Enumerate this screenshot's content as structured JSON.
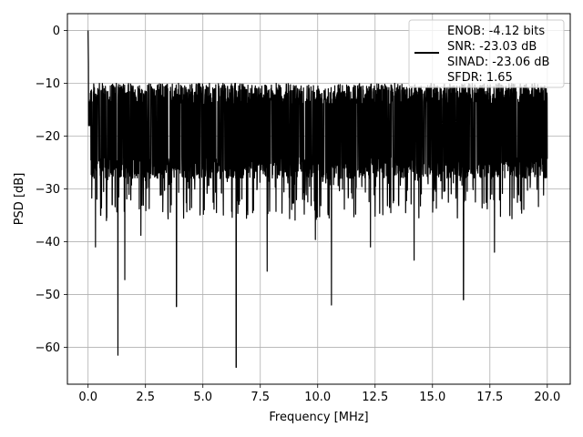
{
  "chart_data": {
    "type": "line",
    "title": "",
    "xlabel": "Frequency [MHz]",
    "ylabel": "PSD [dB]",
    "xlim": [
      -0.9,
      21.0
    ],
    "ylim": [
      -67,
      3.2
    ],
    "xticks": [
      0.0,
      2.5,
      5.0,
      7.5,
      10.0,
      12.5,
      15.0,
      17.5,
      20.0
    ],
    "xtick_labels": [
      "0.0",
      "2.5",
      "5.0",
      "7.5",
      "10.0",
      "12.5",
      "15.0",
      "17.5",
      "20.0"
    ],
    "yticks": [
      0,
      -10,
      -20,
      -30,
      -40,
      -50,
      -60
    ],
    "ytick_labels": [
      "0",
      "−10",
      "−20",
      "−30",
      "−40",
      "−50",
      "−60"
    ],
    "grid": true,
    "legend_position": "top-right",
    "series": [
      {
        "color": "#000000",
        "noise_floor_upper_db": -10,
        "noise_floor_lower_db": -28,
        "dc_peak": [
          0.0,
          0.0
        ],
        "deep_nulls": [
          [
            0.32,
            -41
          ],
          [
            0.55,
            -35
          ],
          [
            0.8,
            -36
          ],
          [
            1.05,
            -33
          ],
          [
            1.3,
            -61.5
          ],
          [
            1.6,
            -47.2
          ],
          [
            2.3,
            -38.8
          ],
          [
            3.85,
            -52.3
          ],
          [
            6.45,
            -63.8
          ],
          [
            7.8,
            -45.6
          ],
          [
            9.9,
            -39.6
          ],
          [
            10.6,
            -52
          ],
          [
            12.3,
            -41
          ],
          [
            14.2,
            -43.5
          ],
          [
            16.35,
            -51
          ],
          [
            17.7,
            -42
          ]
        ],
        "x_range": [
          0.0,
          20.0
        ]
      }
    ]
  },
  "legend": {
    "line1": "ENOB: -4.12 bits",
    "line2": "SNR: -23.03 dB",
    "line3": "SINAD: -23.06 dB",
    "line4": "SFDR: 1.65"
  }
}
